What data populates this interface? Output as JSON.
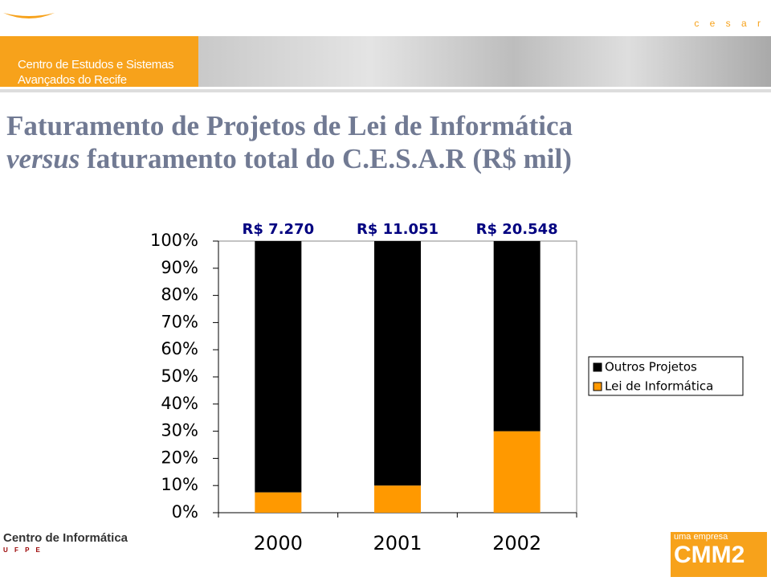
{
  "slide": {
    "org_line1": "Centro de Estudos e Sistemas",
    "org_line2": "Avançados do Recife",
    "logo": "c e s a r",
    "title_line1": "Faturamento de Projetos de Lei de Informática",
    "title_line2_italic": "versus",
    "title_line2_rest": " faturamento total do C.E.S.A.R (R$ mil)",
    "footer_left": "Centro de Informática",
    "footer_left_sub": "U F P E",
    "footer_right_small": "uma empresa",
    "footer_right_big": "CMM2"
  },
  "chart_data": {
    "type": "bar",
    "stacked": true,
    "categories": [
      "2000",
      "2001",
      "2002"
    ],
    "series": [
      {
        "name": "Outros Projetos",
        "color": "#000000",
        "values": [
          92.5,
          90,
          70
        ]
      },
      {
        "name": "Lei de Informática",
        "color": "#ff9900",
        "values": [
          7.5,
          10,
          30
        ]
      }
    ],
    "annotations": [
      "R$ 7.270",
      "R$ 11.051",
      "R$ 20.548"
    ],
    "ylim": [
      0,
      100
    ],
    "yticks": [
      {
        "value": 0,
        "label": "0%"
      },
      {
        "value": 10,
        "label": "10%"
      },
      {
        "value": 20,
        "label": "20%"
      },
      {
        "value": 30,
        "label": "30%"
      },
      {
        "value": 40,
        "label": "40%"
      },
      {
        "value": 50,
        "label": "50%"
      },
      {
        "value": 60,
        "label": "60%"
      },
      {
        "value": 70,
        "label": "70%"
      },
      {
        "value": 80,
        "label": "80%"
      },
      {
        "value": 90,
        "label": "90%"
      },
      {
        "value": 100,
        "label": "100%"
      }
    ],
    "legend": "right"
  }
}
